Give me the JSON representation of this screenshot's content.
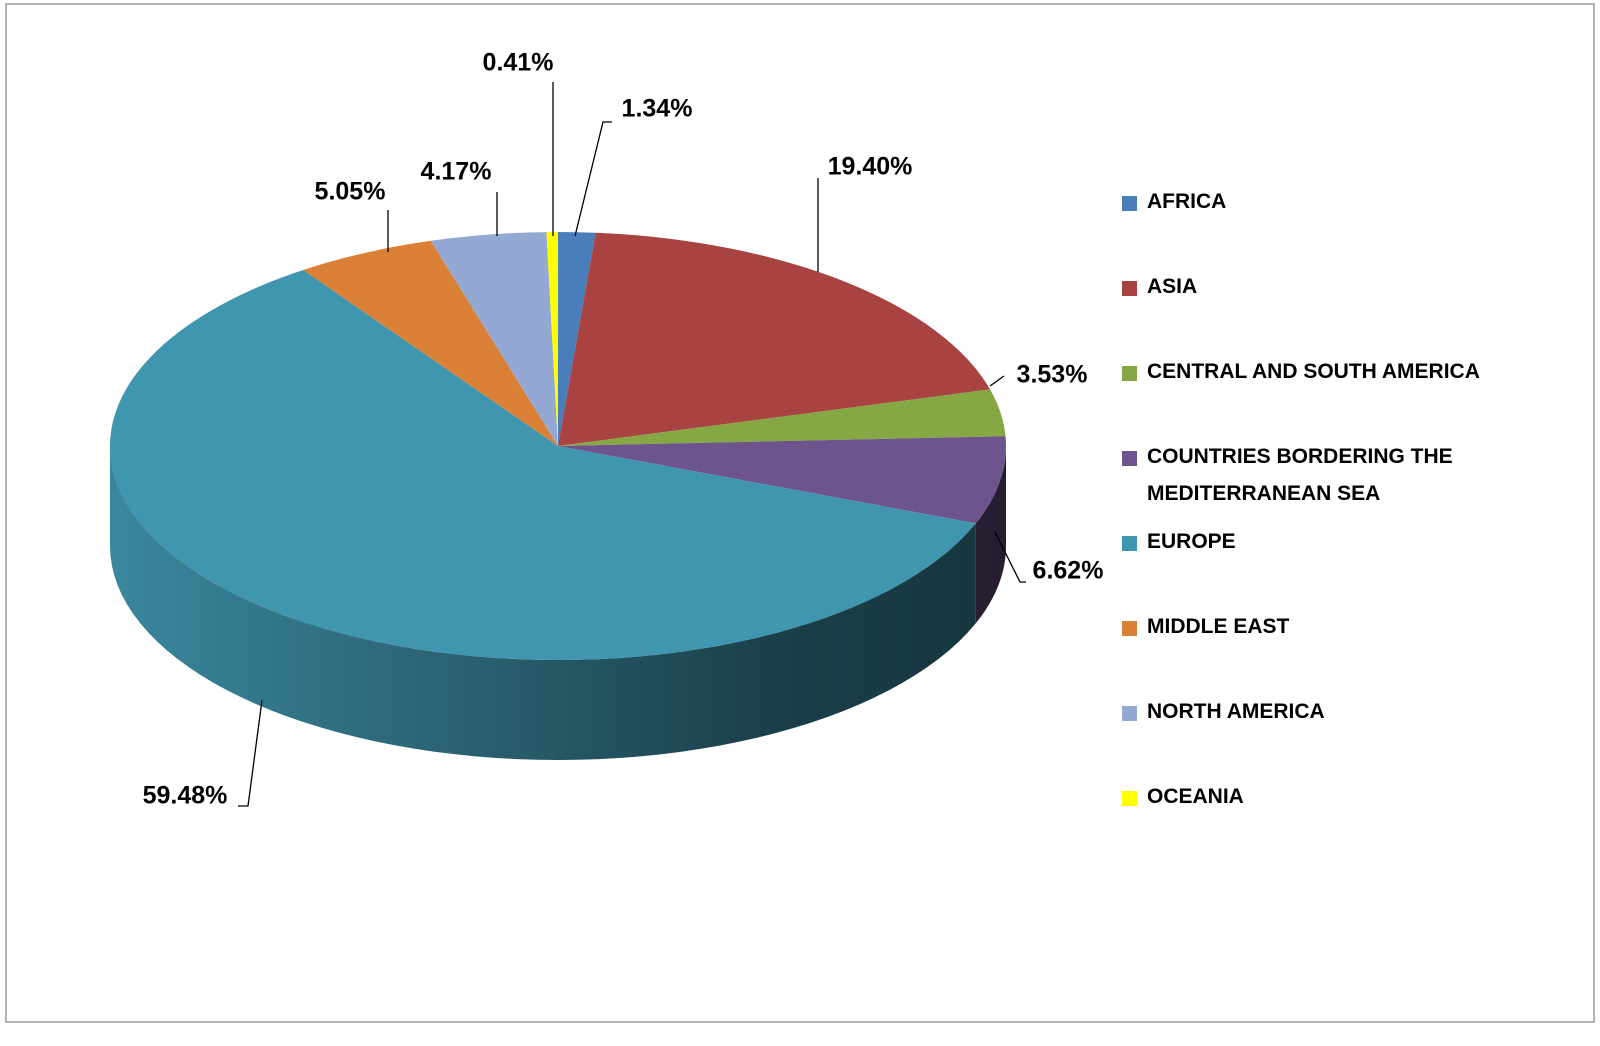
{
  "chart_data": {
    "type": "pie",
    "categories": [
      "AFRICA",
      "ASIA",
      "CENTRAL AND SOUTH AMERICA",
      "COUNTRIES BORDERING THE MEDITERRANEAN SEA",
      "EUROPE",
      "MIDDLE EAST",
      "NORTH AMERICA",
      "OCEANIA"
    ],
    "values": [
      1.34,
      19.4,
      3.53,
      6.62,
      59.48,
      5.05,
      4.17,
      0.41
    ],
    "value_labels": [
      "1.34%",
      "19.40%",
      "3.53%",
      "6.62%",
      "59.48%",
      "5.05%",
      "4.17%",
      "0.41%"
    ],
    "colors": [
      "#4a7ebb",
      "#a84342",
      "#86a844",
      "#6e548d",
      "#4096ae",
      "#da8137",
      "#93a9d4",
      "#ffff00"
    ],
    "legend": "right"
  }
}
